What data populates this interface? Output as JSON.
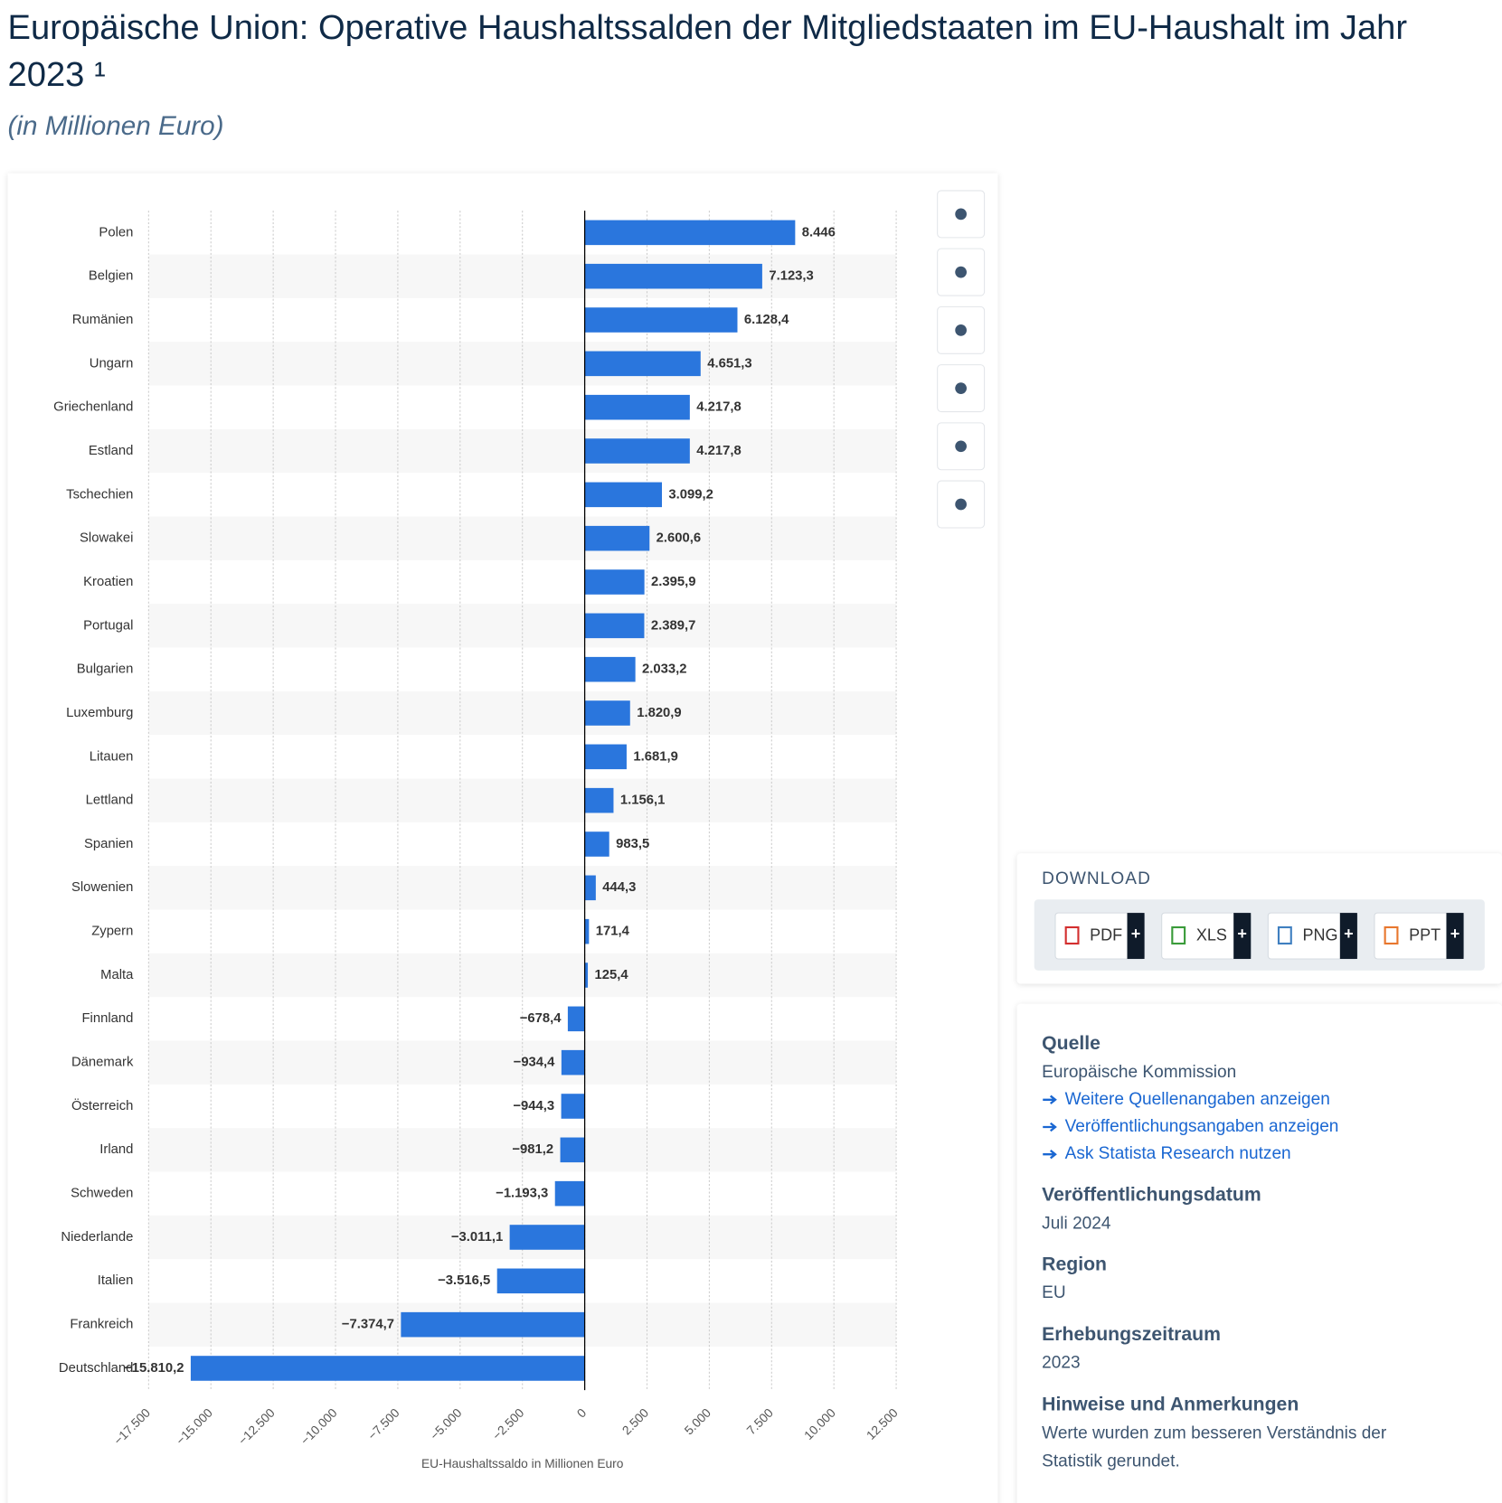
{
  "chart_data": {
    "type": "bar",
    "orientation": "horizontal",
    "title": "Europäische Union: Operative Haushaltssalden der Mitgliedstaaten im EU-Haushalt im Jahr 2023 ¹",
    "title_lines": [
      "Europäische Union: Operative Haushaltssalden der Mitgliedstaaten im EU-Haushalt im Jahr",
      "2023 ¹"
    ],
    "subtitle": "(in Millionen Euro)",
    "x_label": "EU-Haushaltssaldo in Millionen Euro",
    "categories": [
      "Polen",
      "Belgien",
      "Rumänien",
      "Ungarn",
      "Griechenland",
      "Estland",
      "Tschechien",
      "Slowakei",
      "Kroatien",
      "Portugal",
      "Bulgarien",
      "Luxemburg",
      "Litauen",
      "Lettland",
      "Spanien",
      "Slowenien",
      "Zypern",
      "Malta",
      "Finnland",
      "Dänemark",
      "Österreich",
      "Irland",
      "Schweden",
      "Niederlande",
      "Italien",
      "Frankreich",
      "Deutschland"
    ],
    "values": [
      8446,
      7123.3,
      6128.4,
      4651.3,
      4217.8,
      4217.8,
      3099.2,
      2600.6,
      2395.9,
      2389.7,
      2033.2,
      1820.9,
      1681.9,
      1156.1,
      983.5,
      444.3,
      171.4,
      125.4,
      -678.4,
      -934.4,
      -944.3,
      -981.2,
      -1193.3,
      -3011.1,
      -3516.5,
      -7374.7,
      -15810.2
    ],
    "value_labels": [
      "8.446",
      "7.123,3",
      "6.128,4",
      "4.651,3",
      "4.217,8",
      "4.217,8",
      "3.099,2",
      "2.600,6",
      "2.395,9",
      "2.389,7",
      "2.033,2",
      "1.820,9",
      "1.681,9",
      "1.156,1",
      "983,5",
      "444,3",
      "171,4",
      "125,4",
      "−678,4",
      "−934,4",
      "−944,3",
      "−981,2",
      "−1.193,3",
      "−3.011,1",
      "−3.516,5",
      "−7.374,7",
      "−15.810,2"
    ],
    "color": "#2a76dd",
    "xlim": [
      -17500,
      12500
    ],
    "xticks": [
      {
        "value": -17500,
        "label": "−17.500"
      },
      {
        "value": -15000,
        "label": "−15.000"
      },
      {
        "value": -12500,
        "label": "−12.500"
      },
      {
        "value": -10000,
        "label": "−10.000"
      },
      {
        "value": -7500,
        "label": "−7.500"
      },
      {
        "value": -5000,
        "label": "−5.000"
      },
      {
        "value": -2500,
        "label": "−2.500"
      },
      0,
      {
        "value": 2500,
        "label": "2.500"
      },
      {
        "value": 5000,
        "label": "5.000"
      },
      {
        "value": 7500,
        "label": "7.500"
      },
      {
        "value": 10000,
        "label": "10.000"
      },
      {
        "value": 12500,
        "label": "12.500"
      }
    ],
    "grid": true
  },
  "download": {
    "title": "DOWNLOAD",
    "buttons": [
      "PDF",
      "XLS",
      "PNG",
      "PPT"
    ],
    "plus": "+"
  },
  "info": {
    "source_heading": "Quelle",
    "source": "Europäische Kommission",
    "links": [
      "Weitere Quellenangaben anzeigen",
      "Veröffentlichungsangaben anzeigen",
      "Ask Statista Research nutzen"
    ],
    "date_heading": "Veröffentlichungsdatum",
    "date": "Juli 2024",
    "region_heading": "Region",
    "region": "EU",
    "period_heading": "Erhebungszeitraum",
    "period": "2023",
    "notes_heading": "Hinweise und Anmerkungen",
    "notes_lines": [
      "Werte wurden zum besseren Verständnis der",
      "Statistik gerundet."
    ]
  }
}
